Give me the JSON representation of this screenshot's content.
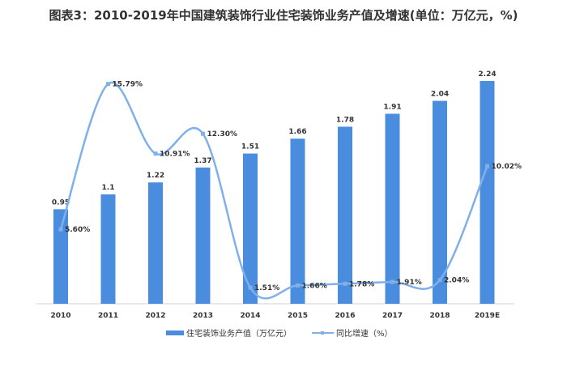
{
  "chart_data": {
    "type": "bar+line",
    "title": "图表3：2010-2019年中国建筑装饰行业住宅装饰业务产值及增速(单位：万亿元，%)",
    "categories": [
      "2010",
      "2011",
      "2012",
      "2013",
      "2014",
      "2015",
      "2016",
      "2017",
      "2018",
      "2019E"
    ],
    "series": [
      {
        "name": "住宅装饰业务产值（万亿元）",
        "type": "bar",
        "color": "#4a8ddf",
        "values": [
          0.95,
          1.1,
          1.22,
          1.37,
          1.51,
          1.66,
          1.78,
          1.91,
          2.04,
          2.24
        ],
        "labels": [
          "0.95",
          "1.1",
          "1.22",
          "1.37",
          "1.51",
          "1.66",
          "1.78",
          "1.91",
          "2.04",
          "2.24"
        ]
      },
      {
        "name": "同比增速（%）",
        "type": "line",
        "smooth": true,
        "color": "#7fb0ea",
        "values": [
          5.6,
          15.79,
          10.91,
          12.3,
          1.51,
          1.66,
          1.78,
          1.91,
          2.04,
          10.02
        ],
        "labels": [
          "5.60%",
          "15.79%",
          "10.91%",
          "12.30%",
          "1.51%",
          "1.66%",
          "1.78%",
          "1.91%",
          "2.04%",
          "10.02%"
        ]
      }
    ],
    "grid": false,
    "legend": "bottom"
  }
}
